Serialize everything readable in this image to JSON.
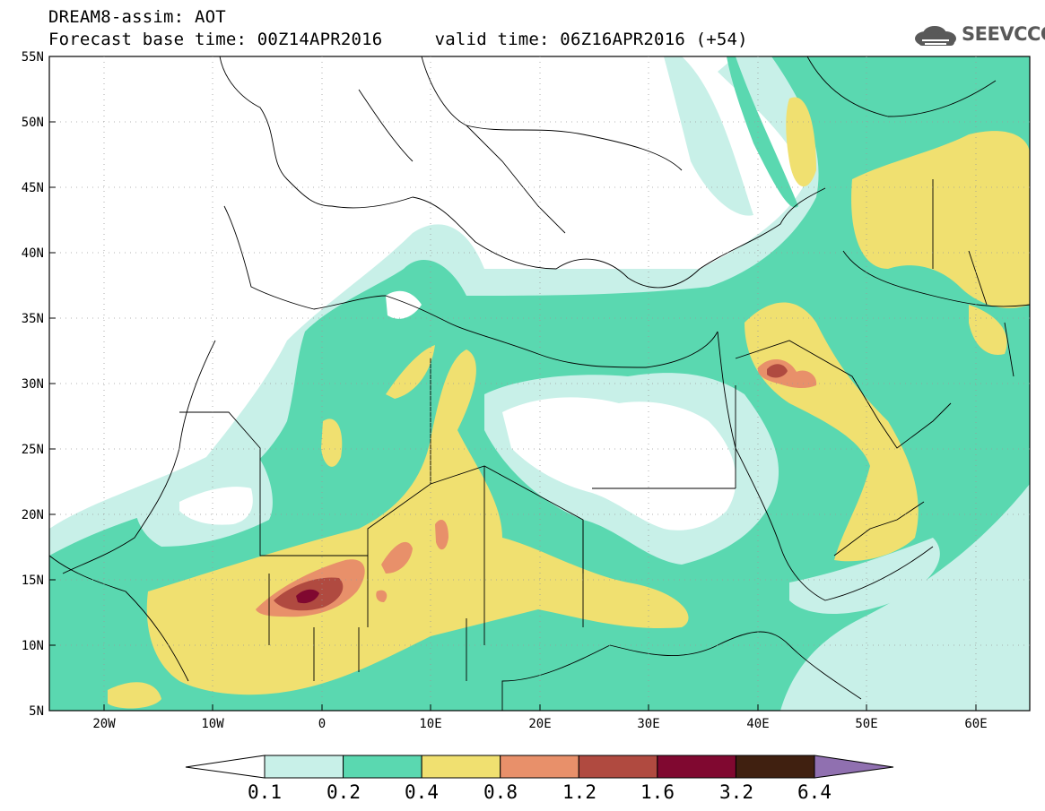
{
  "header": {
    "title_line1": "DREAM8-assim: AOT",
    "title_line2": "Forecast base time: 00Z14APR2016     valid time: 06Z16APR2016 (+54)",
    "logo_text": "SEEVCCC"
  },
  "map": {
    "variable": "AOT",
    "lat_labels": [
      "55N",
      "50N",
      "45N",
      "40N",
      "35N",
      "30N",
      "25N",
      "20N",
      "15N",
      "10N",
      "5N"
    ],
    "lon_labels": [
      "20W",
      "10W",
      "0",
      "10E",
      "20E",
      "30E",
      "40E",
      "50E",
      "60E"
    ],
    "colors": {
      "c01": "#c8f0e8",
      "c02": "#5ad8b0",
      "c04": "#f0e070",
      "c08": "#e8906a",
      "c12": "#b04a40",
      "c16": "#800830",
      "c32": "#402010",
      "c64": "#9070b0"
    }
  },
  "colorbar": {
    "labels": [
      "0.1",
      "0.2",
      "0.4",
      "0.8",
      "1.2",
      "1.6",
      "3.2",
      "6.4"
    ],
    "colors": [
      "#c8f0e8",
      "#5ad8b0",
      "#f0e070",
      "#e8906a",
      "#b04a40",
      "#800830",
      "#402010"
    ],
    "under_color": "#ffffff",
    "over_color": "#9070b0"
  }
}
